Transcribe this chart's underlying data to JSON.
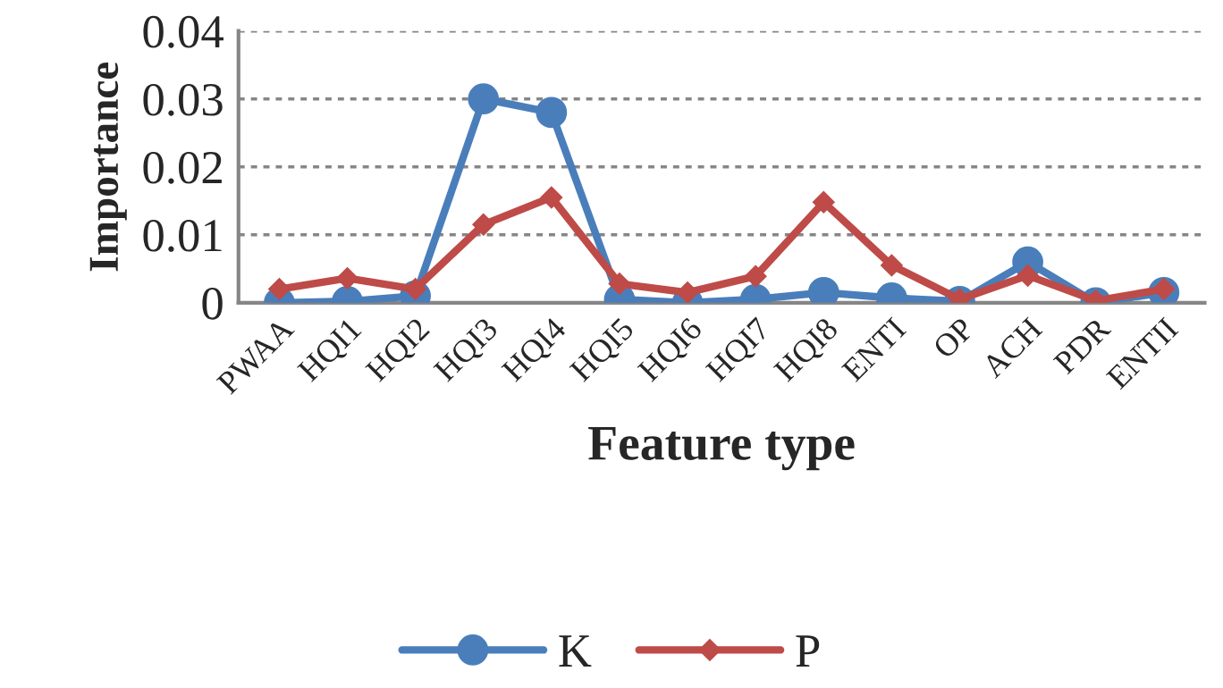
{
  "chart_data": {
    "type": "line",
    "xlabel": "Feature type",
    "ylabel": "Importance",
    "categories": [
      "PWAA",
      "HQI1",
      "HQI2",
      "HQI3",
      "HQI4",
      "HQI5",
      "HQI6",
      "HQI7",
      "HQI8",
      "ENTI",
      "OP",
      "ACH",
      "PDR",
      "ENTII"
    ],
    "series": [
      {
        "name": "K",
        "color": "#4a7ebb",
        "marker": "circle",
        "values": [
          0.0,
          0.0002,
          0.001,
          0.03,
          0.028,
          0.0005,
          0.0,
          0.0005,
          0.0015,
          0.0007,
          0.0002,
          0.006,
          0.0,
          0.0015
        ]
      },
      {
        "name": "P",
        "color": "#be4b48",
        "marker": "diamond",
        "values": [
          0.002,
          0.0036,
          0.002,
          0.0115,
          0.0155,
          0.0028,
          0.0015,
          0.0039,
          0.0148,
          0.0055,
          0.0005,
          0.004,
          0.0003,
          0.002
        ]
      }
    ],
    "ylim": [
      0,
      0.04
    ],
    "yticks": [
      0,
      0.01,
      0.02,
      0.03,
      0.04
    ],
    "grid": "y",
    "legend": "bottom"
  }
}
